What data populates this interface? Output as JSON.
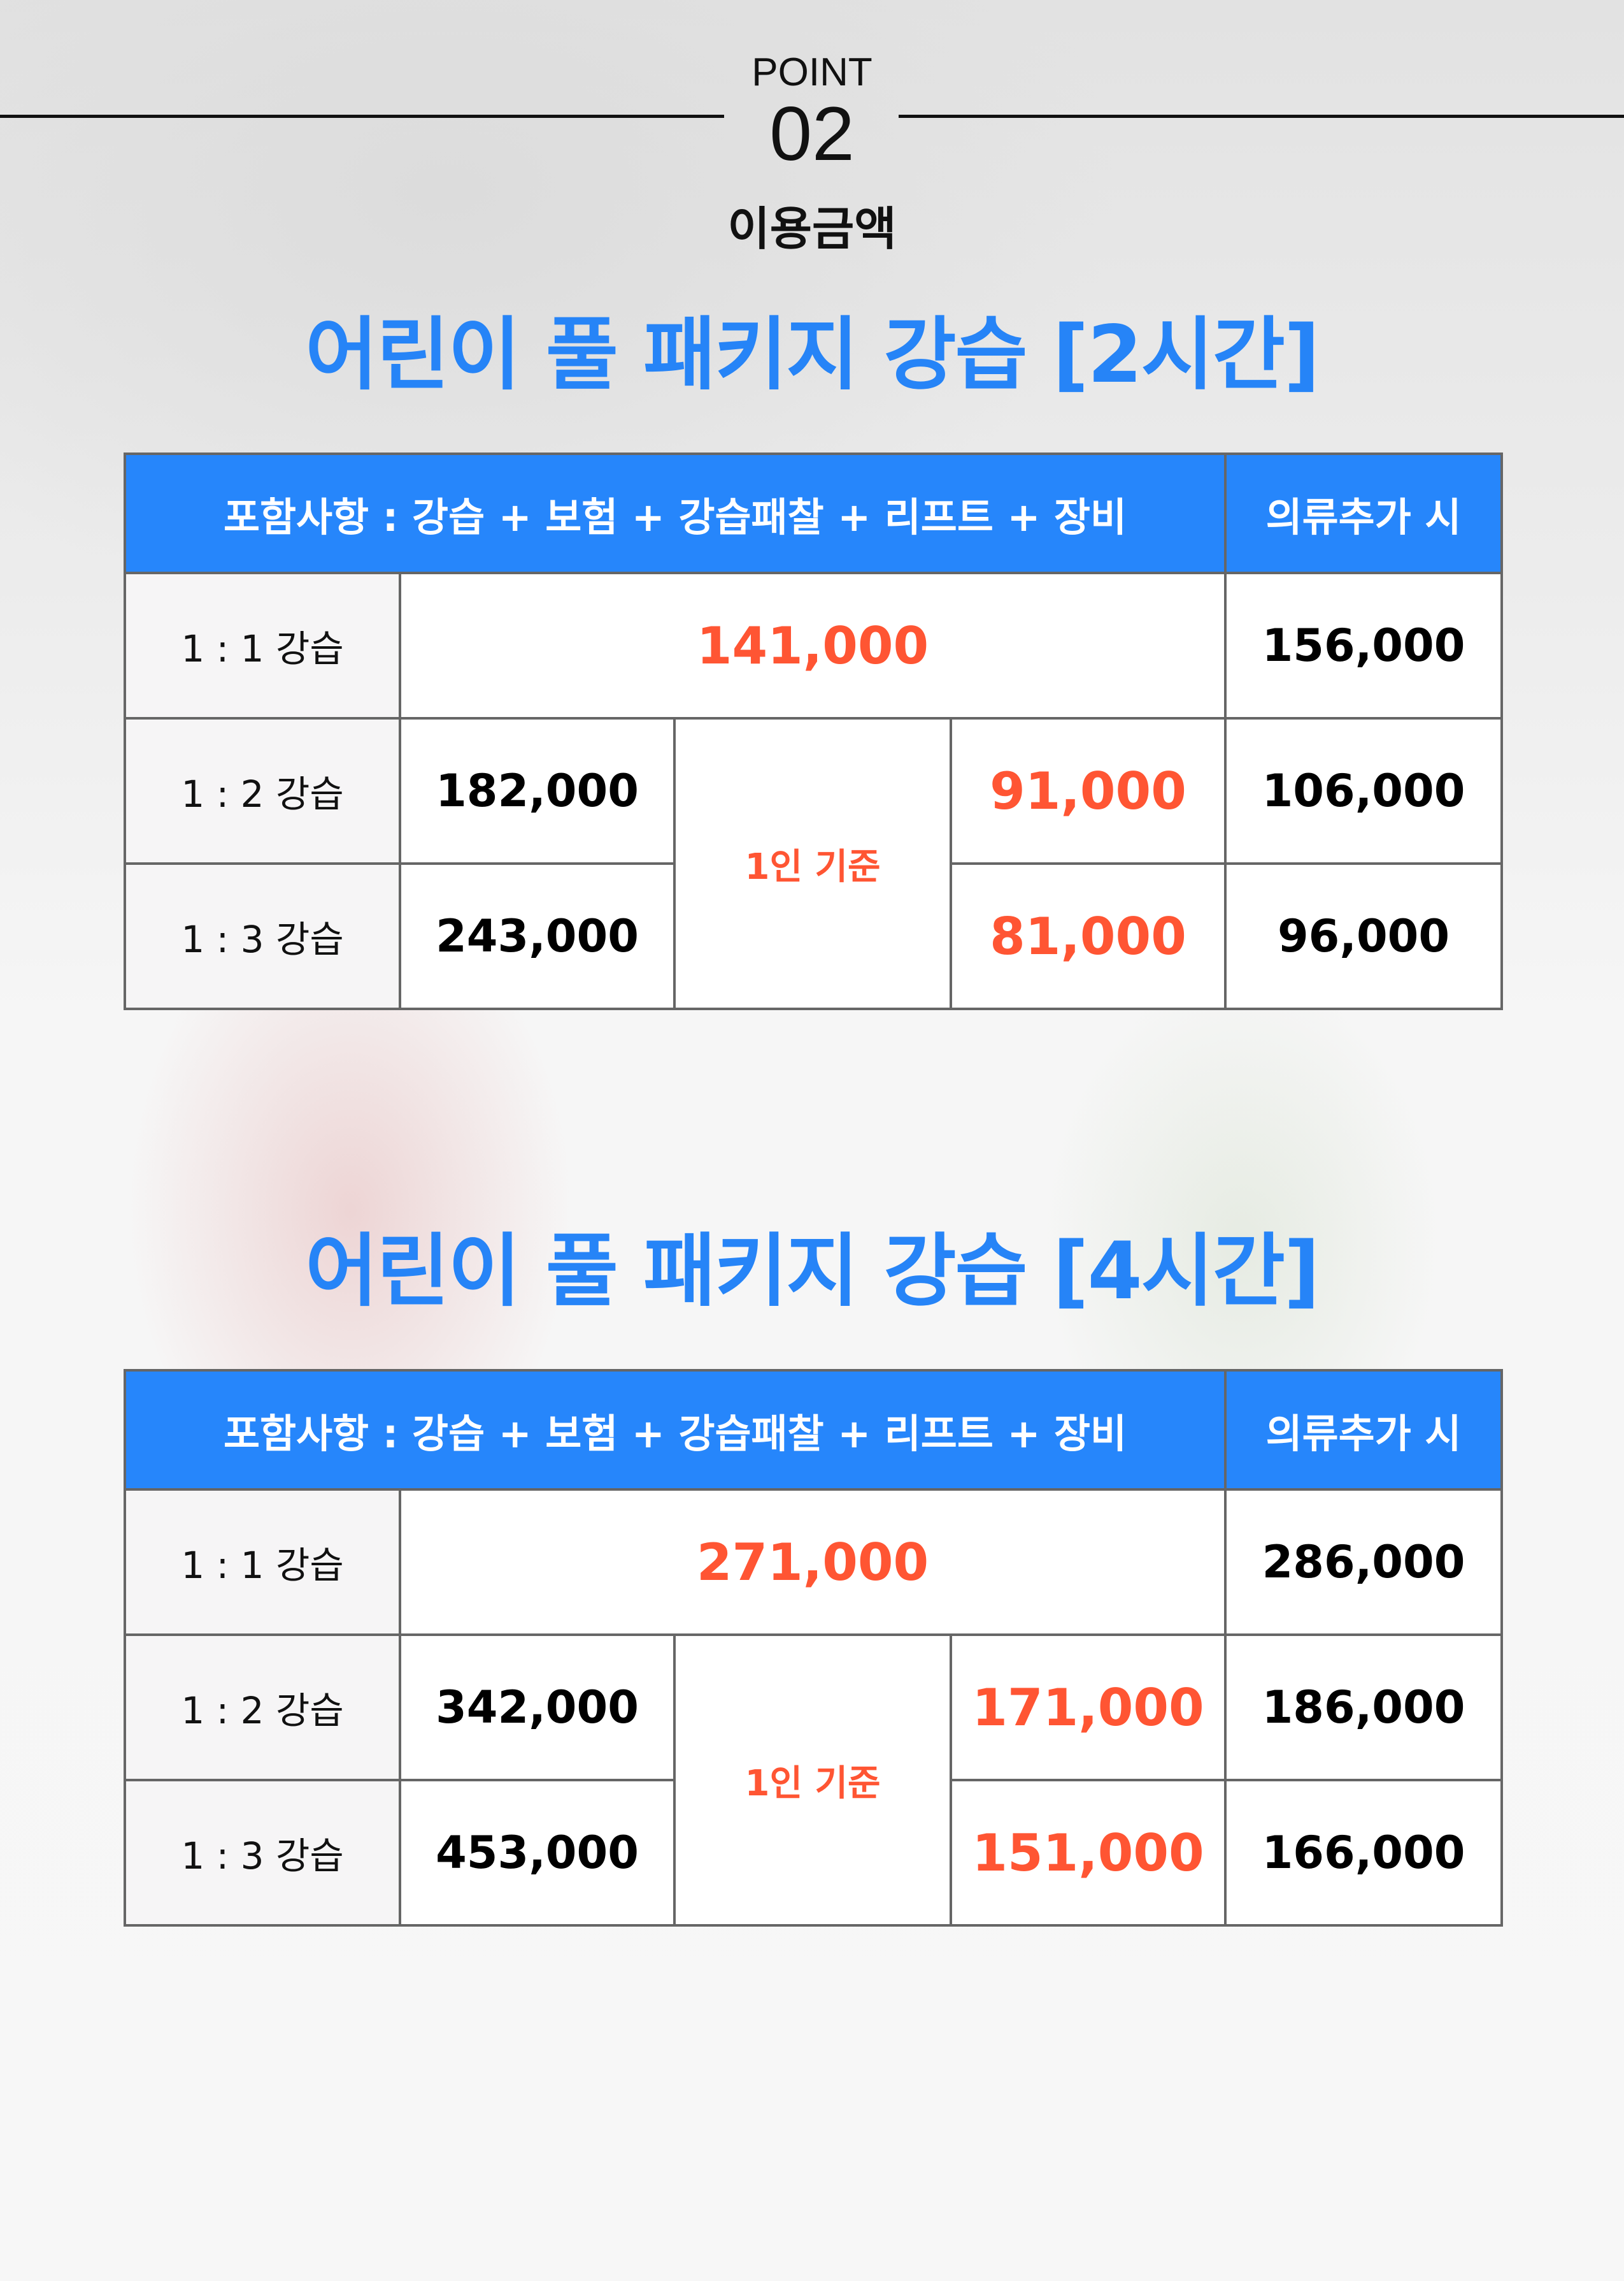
{
  "header": {
    "point_label": "POINT",
    "point_number": "02",
    "subtitle": "이용금액"
  },
  "colors": {
    "accent_blue": "#2686fb",
    "title_blue": "#2684f7",
    "price_red": "#ff5533"
  },
  "tables": [
    {
      "title": "어린이 풀 패키지 강습 [2시간]",
      "header_included": "포함사항 : 강습 + 보험 + 강습패찰 + 리프트 + 장비",
      "header_clothing": "의류추가 시",
      "per_person_label": "1인 기준",
      "rows": [
        {
          "label": "1 : 1 강습",
          "total": "141,000",
          "clothing": "156,000"
        },
        {
          "label": "1 : 2 강습",
          "total": "182,000",
          "per_person": "91,000",
          "clothing": "106,000"
        },
        {
          "label": "1 : 3 강습",
          "total": "243,000",
          "per_person": "81,000",
          "clothing": "96,000"
        }
      ]
    },
    {
      "title": "어린이 풀 패키지 강습 [4시간]",
      "header_included": "포함사항 : 강습 + 보험 + 강습패찰 + 리프트 + 장비",
      "header_clothing": "의류추가 시",
      "per_person_label": "1인 기준",
      "rows": [
        {
          "label": "1 : 1 강습",
          "total": "271,000",
          "clothing": "286,000"
        },
        {
          "label": "1 : 2 강습",
          "total": "342,000",
          "per_person": "171,000",
          "clothing": "186,000"
        },
        {
          "label": "1 : 3 강습",
          "total": "453,000",
          "per_person": "151,000",
          "clothing": "166,000"
        }
      ]
    }
  ]
}
